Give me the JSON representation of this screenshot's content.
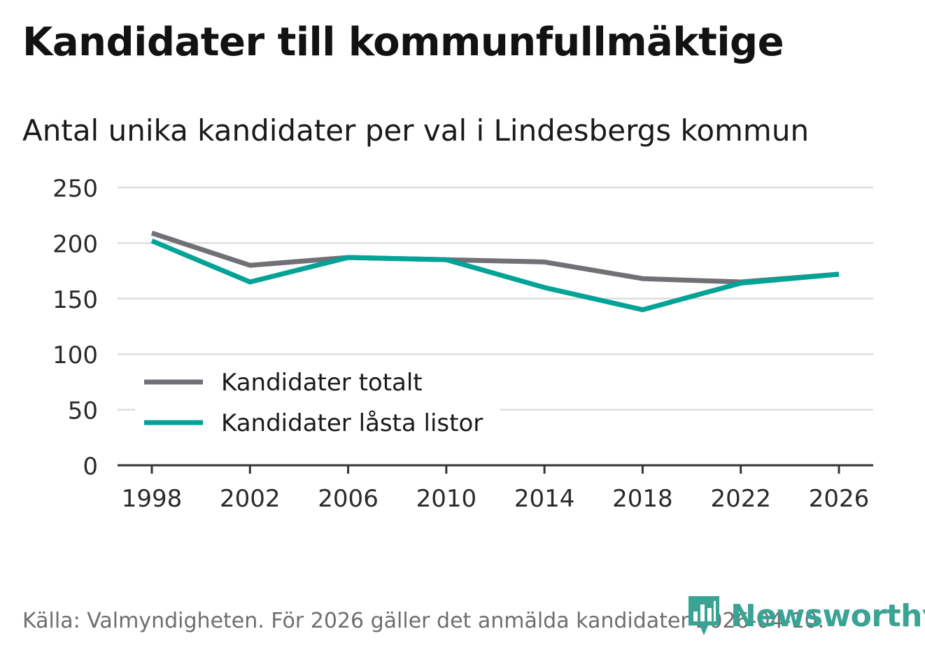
{
  "header": {
    "title": "Kandidater till kommunfullmäktige",
    "subtitle": "Antal unika kandidater per val i Lindesbergs kommun"
  },
  "footer": {
    "source": "Källa: Valmyndigheten. För 2026 gäller det anmälda kandidater 2026-04-10.",
    "brand": "Newsworthy"
  },
  "colors": {
    "total": "#707075",
    "locked": "#00a396",
    "grid": "#dedede",
    "axis": "#333333",
    "brand": "#3aa394"
  },
  "chart_data": {
    "type": "line",
    "title": "Kandidater till kommunfullmäktige",
    "subtitle": "Antal unika kandidater per val i Lindesbergs kommun",
    "xlabel": "",
    "ylabel": "",
    "x": [
      1998,
      2002,
      2006,
      2010,
      2014,
      2018,
      2022,
      2026
    ],
    "ylim": [
      0,
      250
    ],
    "yticks": [
      0,
      50,
      100,
      150,
      200,
      250
    ],
    "grid": true,
    "legend_position": "bottom-left",
    "series": [
      {
        "name": "Kandidater totalt",
        "color": "#707075",
        "values": [
          209,
          180,
          187,
          185,
          183,
          168,
          165,
          172
        ]
      },
      {
        "name": "Kandidater låsta listor",
        "color": "#00a396",
        "values": [
          202,
          165,
          187,
          185,
          160,
          140,
          164,
          172
        ]
      }
    ]
  }
}
